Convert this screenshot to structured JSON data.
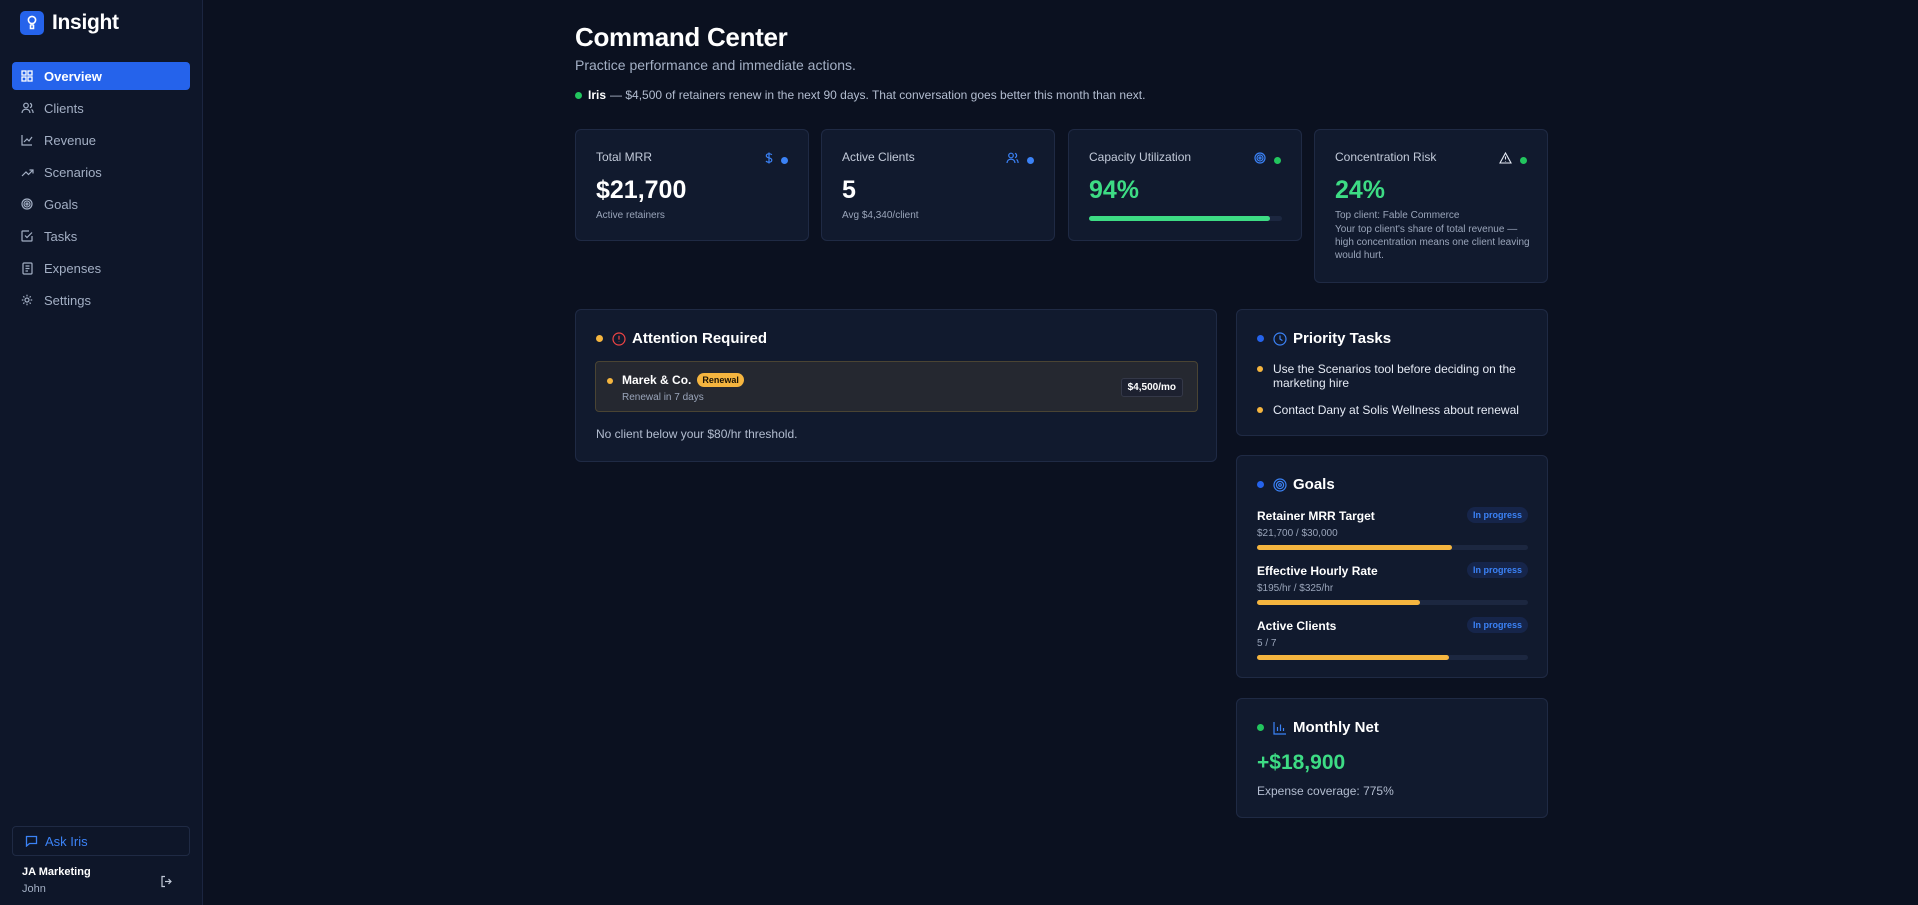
{
  "app": {
    "name": "Insight"
  },
  "sidebar": {
    "items": [
      {
        "label": "Overview",
        "icon": "grid-icon",
        "active": true
      },
      {
        "label": "Clients",
        "icon": "users-icon"
      },
      {
        "label": "Revenue",
        "icon": "line-chart-icon"
      },
      {
        "label": "Scenarios",
        "icon": "trending-up-icon"
      },
      {
        "label": "Goals",
        "icon": "target-icon"
      },
      {
        "label": "Tasks",
        "icon": "check-square-icon"
      },
      {
        "label": "Expenses",
        "icon": "receipt-icon"
      },
      {
        "label": "Settings",
        "icon": "gear-icon"
      }
    ],
    "ask_label": "Ask Iris",
    "user": {
      "org": "JA Marketing",
      "name": "John"
    }
  },
  "header": {
    "title": "Command Center",
    "subtitle": "Practice performance and immediate actions.",
    "notice": {
      "name": "Iris",
      "text": "— $4,500 of retainers renew in the next 90 days. That conversation goes better this month than next."
    }
  },
  "kpis": {
    "mrr": {
      "label": "Total MRR",
      "value": "$21,700",
      "sub": "Active retainers"
    },
    "clients": {
      "label": "Active Clients",
      "value": "5",
      "sub": "Avg $4,340/client"
    },
    "capacity": {
      "label": "Capacity Utilization",
      "value": "94%",
      "progress": 94
    },
    "risk": {
      "label": "Concentration Risk",
      "value": "24%",
      "sub": "Top client: Fable Commerce",
      "desc": "Your top client's share of total revenue — high concentration means one client leaving would hurt."
    }
  },
  "attention": {
    "title": "Attention Required",
    "items": [
      {
        "name": "Marek & Co.",
        "badge": "Renewal",
        "meta": "Renewal in 7 days",
        "amount": "$4,500/mo"
      }
    ],
    "note": "No client below your $80/hr threshold."
  },
  "tasks": {
    "title": "Priority Tasks",
    "items": [
      "Use the Scenarios tool before deciding on the marketing hire",
      "Contact Dany at Solis Wellness about renewal"
    ]
  },
  "goals": {
    "title": "Goals",
    "items": [
      {
        "name": "Retainer MRR Target",
        "value": "$21,700 / $30,000",
        "status": "In progress",
        "progress": 72
      },
      {
        "name": "Effective Hourly Rate",
        "value": "$195/hr / $325/hr",
        "status": "In progress",
        "progress": 60
      },
      {
        "name": "Active Clients",
        "value": "5 / 7",
        "status": "In progress",
        "progress": 71
      }
    ]
  },
  "net": {
    "title": "Monthly Net",
    "value": "+$18,900",
    "sub": "Expense coverage: 775%"
  },
  "colors": {
    "accent": "#2563eb",
    "positive": "#3ddc84",
    "warning": "#f5b53f",
    "danger": "#ef4444",
    "background": "#0b1120",
    "card": "#111a2e"
  }
}
